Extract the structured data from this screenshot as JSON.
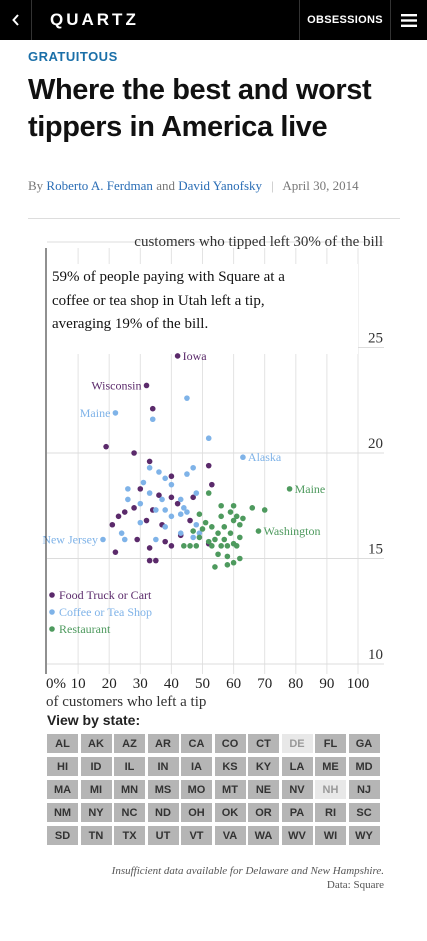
{
  "nav": {
    "back_icon": "chevron-left-icon",
    "brand": "QUARTZ",
    "obsessions": "OBSESSIONS",
    "menu_icon": "hamburger-icon"
  },
  "article": {
    "kicker": "GRATUITOUS",
    "headline": "Where the best and worst tippers in America live",
    "by": "By",
    "author1": "Roberto A. Ferdman",
    "and": "and",
    "author2": "David Yanofsky",
    "sep": "|",
    "date": "April 30, 2014"
  },
  "colors": {
    "food_truck": "#5b2a6b",
    "coffee": "#7fb3e8",
    "restaurant": "#4e9a5e",
    "link": "#2a6db5",
    "kicker": "#1a6fa8"
  },
  "chart_data": {
    "type": "scatter",
    "title": "customers who tipped left 30% of the bill",
    "callout": [
      "59% of people paying with Square at a",
      "coffee or tea shop in Utah left a tip,",
      "averaging 19% of the bill."
    ],
    "xlabel": "of customers who left a tip",
    "xlim": [
      0,
      100
    ],
    "ylim": [
      10,
      30
    ],
    "x_ticks": [
      "0%",
      "10",
      "20",
      "30",
      "40",
      "50",
      "60",
      "70",
      "80",
      "90",
      "100"
    ],
    "y_ticks": [
      "25",
      "20",
      "15",
      "10"
    ],
    "legend": [
      "Food Truck or Cart",
      "Coffee or Tea Shop",
      "Restaurant"
    ],
    "series": [
      {
        "name": "Food Truck or Cart",
        "color": "#5b2a6b",
        "points": [
          {
            "x": 42,
            "y": 24.6,
            "label": "Iowa"
          },
          {
            "x": 32,
            "y": 23.2,
            "label": "Wisconsin"
          },
          {
            "x": 34,
            "y": 22.1
          },
          {
            "x": 19,
            "y": 20.3
          },
          {
            "x": 28,
            "y": 20.0
          },
          {
            "x": 33,
            "y": 19.6
          },
          {
            "x": 52,
            "y": 19.4
          },
          {
            "x": 40,
            "y": 18.9
          },
          {
            "x": 30,
            "y": 18.3
          },
          {
            "x": 36,
            "y": 18.0
          },
          {
            "x": 40,
            "y": 17.9
          },
          {
            "x": 42,
            "y": 17.6
          },
          {
            "x": 47,
            "y": 17.9
          },
          {
            "x": 53,
            "y": 18.5
          },
          {
            "x": 25,
            "y": 17.2
          },
          {
            "x": 28,
            "y": 17.4
          },
          {
            "x": 23,
            "y": 17.0
          },
          {
            "x": 34,
            "y": 17.3
          },
          {
            "x": 21,
            "y": 16.6
          },
          {
            "x": 32,
            "y": 16.8
          },
          {
            "x": 37,
            "y": 16.6
          },
          {
            "x": 43,
            "y": 16.1
          },
          {
            "x": 46,
            "y": 16.8
          },
          {
            "x": 29,
            "y": 15.9
          },
          {
            "x": 40,
            "y": 15.6
          },
          {
            "x": 33,
            "y": 15.5
          },
          {
            "x": 38,
            "y": 15.8
          },
          {
            "x": 52,
            "y": 15.7
          },
          {
            "x": 22,
            "y": 15.3
          },
          {
            "x": 33,
            "y": 14.9
          },
          {
            "x": 35,
            "y": 14.9
          }
        ]
      },
      {
        "name": "Coffee or Tea Shop",
        "color": "#7fb3e8",
        "points": [
          {
            "x": 22,
            "y": 21.9,
            "label": "Maine"
          },
          {
            "x": 63,
            "y": 19.8,
            "label": "Alaska"
          },
          {
            "x": 18,
            "y": 15.9,
            "label": "New Jersey"
          },
          {
            "x": 45,
            "y": 22.6
          },
          {
            "x": 34,
            "y": 21.6
          },
          {
            "x": 52,
            "y": 20.7
          },
          {
            "x": 33,
            "y": 19.3
          },
          {
            "x": 36,
            "y": 19.1
          },
          {
            "x": 31,
            "y": 18.6
          },
          {
            "x": 38,
            "y": 18.8
          },
          {
            "x": 26,
            "y": 18.3
          },
          {
            "x": 33,
            "y": 18.1
          },
          {
            "x": 40,
            "y": 18.5
          },
          {
            "x": 45,
            "y": 19.0
          },
          {
            "x": 47,
            "y": 19.3
          },
          {
            "x": 48,
            "y": 18.1
          },
          {
            "x": 26,
            "y": 17.8
          },
          {
            "x": 37,
            "y": 17.8
          },
          {
            "x": 43,
            "y": 17.8
          },
          {
            "x": 30,
            "y": 17.6
          },
          {
            "x": 44,
            "y": 17.4
          },
          {
            "x": 35,
            "y": 17.3
          },
          {
            "x": 38,
            "y": 17.3
          },
          {
            "x": 43,
            "y": 17.1
          },
          {
            "x": 45,
            "y": 17.2
          },
          {
            "x": 40,
            "y": 17.0
          },
          {
            "x": 30,
            "y": 16.7
          },
          {
            "x": 38,
            "y": 16.5
          },
          {
            "x": 48,
            "y": 16.6
          },
          {
            "x": 43,
            "y": 16.2
          },
          {
            "x": 49,
            "y": 16.2
          },
          {
            "x": 24,
            "y": 16.2
          },
          {
            "x": 25,
            "y": 15.9
          },
          {
            "x": 35,
            "y": 15.9
          },
          {
            "x": 47,
            "y": 16.0
          }
        ]
      },
      {
        "name": "Restaurant",
        "color": "#4e9a5e",
        "points": [
          {
            "x": 78,
            "y": 18.3,
            "label": "Maine"
          },
          {
            "x": 68,
            "y": 16.3,
            "label": "Washington"
          },
          {
            "x": 52,
            "y": 18.1
          },
          {
            "x": 56,
            "y": 17.5
          },
          {
            "x": 60,
            "y": 17.5
          },
          {
            "x": 66,
            "y": 17.4
          },
          {
            "x": 70,
            "y": 17.3
          },
          {
            "x": 49,
            "y": 17.1
          },
          {
            "x": 56,
            "y": 17.0
          },
          {
            "x": 59,
            "y": 17.2
          },
          {
            "x": 61,
            "y": 17.0
          },
          {
            "x": 63,
            "y": 16.9
          },
          {
            "x": 51,
            "y": 16.7
          },
          {
            "x": 53,
            "y": 16.5
          },
          {
            "x": 57,
            "y": 16.5
          },
          {
            "x": 60,
            "y": 16.8
          },
          {
            "x": 62,
            "y": 16.6
          },
          {
            "x": 47,
            "y": 16.3
          },
          {
            "x": 50,
            "y": 16.4
          },
          {
            "x": 55,
            "y": 16.2
          },
          {
            "x": 59,
            "y": 16.2
          },
          {
            "x": 62,
            "y": 16.0
          },
          {
            "x": 49,
            "y": 16.0
          },
          {
            "x": 52,
            "y": 15.8
          },
          {
            "x": 54,
            "y": 15.9
          },
          {
            "x": 57,
            "y": 15.9
          },
          {
            "x": 60,
            "y": 15.7
          },
          {
            "x": 44,
            "y": 15.6
          },
          {
            "x": 46,
            "y": 15.6
          },
          {
            "x": 48,
            "y": 15.6
          },
          {
            "x": 53,
            "y": 15.6
          },
          {
            "x": 56,
            "y": 15.6
          },
          {
            "x": 58,
            "y": 15.6
          },
          {
            "x": 61,
            "y": 15.6
          },
          {
            "x": 55,
            "y": 15.2
          },
          {
            "x": 58,
            "y": 15.1
          },
          {
            "x": 62,
            "y": 15.0
          },
          {
            "x": 60,
            "y": 14.8
          },
          {
            "x": 54,
            "y": 14.6
          },
          {
            "x": 58,
            "y": 14.7
          }
        ]
      }
    ]
  },
  "state_picker": {
    "label": "View by state:",
    "states": [
      {
        "code": "AL",
        "enabled": true
      },
      {
        "code": "AK",
        "enabled": true
      },
      {
        "code": "AZ",
        "enabled": true
      },
      {
        "code": "AR",
        "enabled": true
      },
      {
        "code": "CA",
        "enabled": true
      },
      {
        "code": "CO",
        "enabled": true
      },
      {
        "code": "CT",
        "enabled": true
      },
      {
        "code": "DE",
        "enabled": false
      },
      {
        "code": "FL",
        "enabled": true
      },
      {
        "code": "GA",
        "enabled": true
      },
      {
        "code": "HI",
        "enabled": true
      },
      {
        "code": "ID",
        "enabled": true
      },
      {
        "code": "IL",
        "enabled": true
      },
      {
        "code": "IN",
        "enabled": true
      },
      {
        "code": "IA",
        "enabled": true
      },
      {
        "code": "KS",
        "enabled": true
      },
      {
        "code": "KY",
        "enabled": true
      },
      {
        "code": "LA",
        "enabled": true
      },
      {
        "code": "ME",
        "enabled": true
      },
      {
        "code": "MD",
        "enabled": true
      },
      {
        "code": "MA",
        "enabled": true
      },
      {
        "code": "MI",
        "enabled": true
      },
      {
        "code": "MN",
        "enabled": true
      },
      {
        "code": "MS",
        "enabled": true
      },
      {
        "code": "MO",
        "enabled": true
      },
      {
        "code": "MT",
        "enabled": true
      },
      {
        "code": "NE",
        "enabled": true
      },
      {
        "code": "NV",
        "enabled": true
      },
      {
        "code": "NH",
        "enabled": false
      },
      {
        "code": "NJ",
        "enabled": true
      },
      {
        "code": "NM",
        "enabled": true
      },
      {
        "code": "NY",
        "enabled": true
      },
      {
        "code": "NC",
        "enabled": true
      },
      {
        "code": "ND",
        "enabled": true
      },
      {
        "code": "OH",
        "enabled": true
      },
      {
        "code": "OK",
        "enabled": true
      },
      {
        "code": "OR",
        "enabled": true
      },
      {
        "code": "PA",
        "enabled": true
      },
      {
        "code": "RI",
        "enabled": true
      },
      {
        "code": "SC",
        "enabled": true
      },
      {
        "code": "SD",
        "enabled": true
      },
      {
        "code": "TN",
        "enabled": true
      },
      {
        "code": "TX",
        "enabled": true
      },
      {
        "code": "UT",
        "enabled": true
      },
      {
        "code": "VT",
        "enabled": true
      },
      {
        "code": "VA",
        "enabled": true
      },
      {
        "code": "WA",
        "enabled": true
      },
      {
        "code": "WV",
        "enabled": true
      },
      {
        "code": "WI",
        "enabled": true
      },
      {
        "code": "WY",
        "enabled": true
      }
    ]
  },
  "footnote": {
    "note": "Insufficient data available for Delaware and New Hampshire.",
    "source": "Data: Square"
  }
}
